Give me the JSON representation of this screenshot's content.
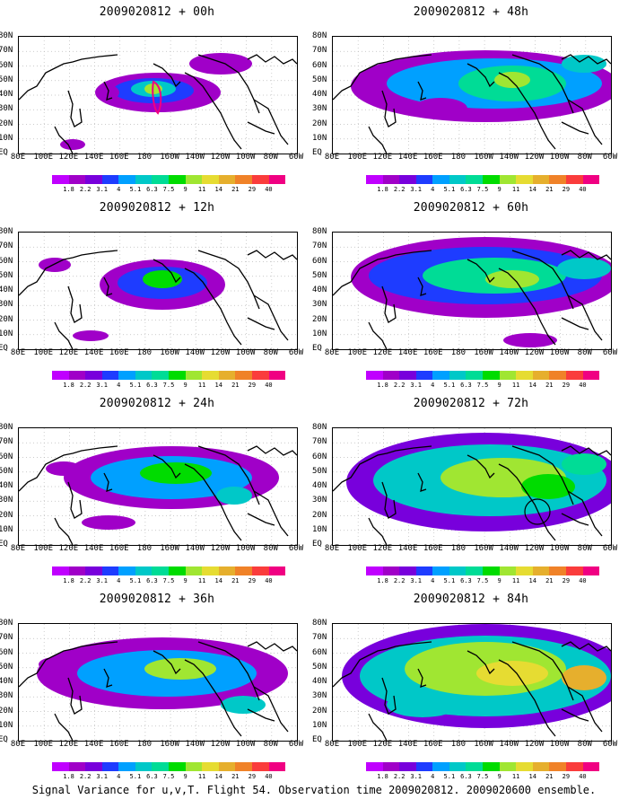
{
  "panels": [
    {
      "title": "2009020812 + 00h"
    },
    {
      "title": "2009020812 + 48h"
    },
    {
      "title": "2009020812 + 12h"
    },
    {
      "title": "2009020812 + 60h"
    },
    {
      "title": "2009020812 + 24h"
    },
    {
      "title": "2009020812 + 72h"
    },
    {
      "title": "2009020812 + 36h"
    },
    {
      "title": "2009020812 + 84h"
    }
  ],
  "lat_labels": [
    "80N",
    "70N",
    "60N",
    "50N",
    "40N",
    "30N",
    "20N",
    "10N",
    "EQ"
  ],
  "lon_labels": [
    "80E",
    "100E",
    "120E",
    "140E",
    "160E",
    "180",
    "160W",
    "140W",
    "120W",
    "100W",
    "80W",
    "60W"
  ],
  "colorbar": {
    "labels": [
      "1.8",
      "2.2",
      "3.1",
      "4",
      "5.1",
      "6.3",
      "7.5",
      "9",
      "11",
      "14",
      "21",
      "29",
      "40"
    ],
    "colors": [
      "#a000c8",
      "#7800dc",
      "#1e3cff",
      "#00a0ff",
      "#00c8c8",
      "#00dc96",
      "#00dc00",
      "#a0e632",
      "#e6dc32",
      "#e6af2d",
      "#f08228",
      "#fa3c3c",
      "#f00082"
    ]
  },
  "footer": "Signal Variance for u,v,T. Flight 54. Observation time 2009020812. 2009020600 ensemble."
}
